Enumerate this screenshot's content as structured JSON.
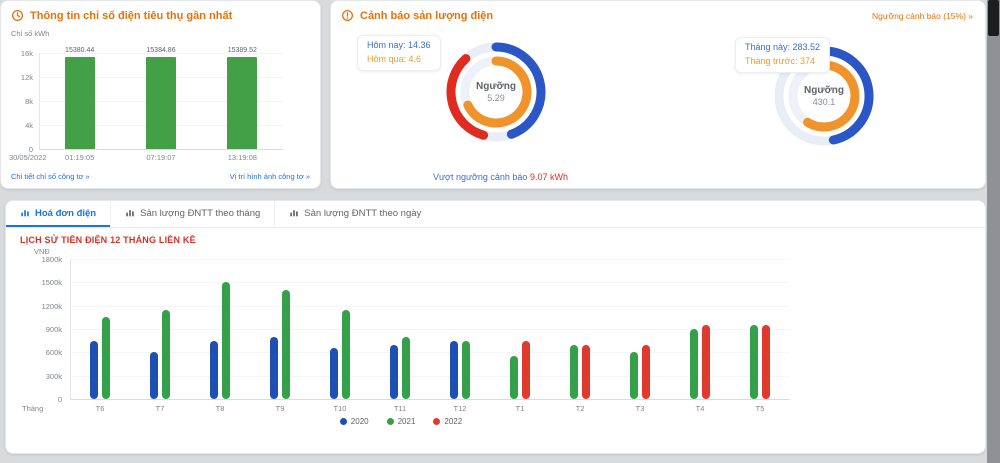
{
  "meter_card": {
    "title": "Thông tin chỉ số điện tiêu thụ gần nhất",
    "y_axis_caption": "Chỉ số kWh",
    "link_detail": "Chi tiết chỉ số công tơ »",
    "link_image": "Vị trí hình ảnh công tơ »"
  },
  "alert_card": {
    "title": "Cảnh báo sản lượng điện",
    "threshold_link": "Ngưỡng cảnh báo (15%) »"
  },
  "bills_card": {
    "tabs": [
      {
        "label": "Hoá đơn điện",
        "active": true
      },
      {
        "label": "Sản lượng ĐNTT theo tháng",
        "active": false
      },
      {
        "label": "Sản lượng ĐNTT theo ngày",
        "active": false
      }
    ],
    "title": "LỊCH SỬ TIỀN ĐIỆN 12 THÁNG LIỀN KỀ"
  },
  "colors": {
    "accent_orange": "#e8710a",
    "link_blue": "#1a73e8",
    "title_red": "#d93025",
    "bar_green": "#43a047",
    "gauge_blue": "#2a56c6",
    "gauge_orange": "#f0932b",
    "gauge_red": "#e02b20",
    "gauge_track": "#e9edf5"
  },
  "chart_data": [
    {
      "id": "meter-readings",
      "type": "bar",
      "title": "Thông tin chỉ số điện tiêu thụ gần nhất",
      "ylabel": "Chỉ số kWh",
      "ylim": [
        0,
        16000
      ],
      "yticks": [
        {
          "v": 16000,
          "label": "16k"
        },
        {
          "v": 12000,
          "label": "12k"
        },
        {
          "v": 8000,
          "label": "8k"
        },
        {
          "v": 4000,
          "label": "4k"
        },
        {
          "v": 0,
          "label": "0"
        }
      ],
      "date": "30/05/2022",
      "categories": [
        "01:19:05",
        "07:19:07",
        "13:19:08"
      ],
      "values": [
        15380.44,
        15384.86,
        15389.52
      ],
      "bar_color": "#43a047"
    },
    {
      "id": "gauge-today",
      "type": "gauge",
      "stats": [
        {
          "label": "Hôm nay: 14.36",
          "color": "#3b6fc9"
        },
        {
          "label": "Hôm qua: 4.6",
          "color": "#f29a2e"
        }
      ],
      "center_label": "Ngưỡng",
      "center_value": "5.29",
      "footer_text": "Vượt ngưỡng cảnh báo",
      "footer_value": "9.07 kWh",
      "rings": [
        {
          "r": 45,
          "w": 9,
          "track": "#e9edf5",
          "segments": [
            {
              "start": 0,
              "end": 160,
              "color": "#2a56c6"
            },
            {
              "start": 196,
              "end": 318,
              "color": "#e02b20"
            }
          ]
        },
        {
          "r": 31,
          "w": 9,
          "track": "#eef1f7",
          "segments": [
            {
              "start": 0,
              "end": 245,
              "color": "#f0932b"
            }
          ]
        }
      ]
    },
    {
      "id": "gauge-month",
      "type": "gauge",
      "stats": [
        {
          "label": "Tháng này: 283.52",
          "color": "#3b6fc9"
        },
        {
          "label": "Tháng trước: 374",
          "color": "#f29a2e"
        }
      ],
      "center_label": "Ngưỡng",
      "center_value": "430.1",
      "rings": [
        {
          "r": 45,
          "w": 9,
          "track": "#e9edf5",
          "segments": [
            {
              "start": 0,
              "end": 168,
              "color": "#2a56c6"
            }
          ]
        },
        {
          "r": 31,
          "w": 9,
          "track": "#eef1f7",
          "segments": [
            {
              "start": 0,
              "end": 212,
              "color": "#f0932b"
            }
          ]
        }
      ]
    },
    {
      "id": "billing-history",
      "type": "bar",
      "title": "LỊCH SỬ TIỀN ĐIỆN 12 THÁNG LIỀN KỀ",
      "ylabel": "VNĐ",
      "xlabel": "Tháng",
      "ylim": [
        0,
        1800
      ],
      "yticks": [
        {
          "v": 1800,
          "label": "1800k"
        },
        {
          "v": 1500,
          "label": "1500k"
        },
        {
          "v": 1200,
          "label": "1200k"
        },
        {
          "v": 900,
          "label": "900k"
        },
        {
          "v": 600,
          "label": "600k"
        },
        {
          "v": 300,
          "label": "300k"
        },
        {
          "v": 0,
          "label": "0"
        }
      ],
      "categories": [
        "T6",
        "T7",
        "T8",
        "T9",
        "T10",
        "T11",
        "T12",
        "T1",
        "T2",
        "T3",
        "T4",
        "T5"
      ],
      "series": [
        {
          "name": "2020",
          "color": "#1e50b4",
          "values": [
            750,
            600,
            750,
            800,
            650,
            700,
            750,
            null,
            null,
            null,
            null,
            null
          ]
        },
        {
          "name": "2021",
          "color": "#34a04a",
          "values": [
            1050,
            1150,
            1500,
            1400,
            1150,
            800,
            750,
            550,
            700,
            600,
            900,
            950
          ]
        },
        {
          "name": "2022",
          "color": "#e03a2f",
          "values": [
            null,
            null,
            null,
            null,
            null,
            null,
            null,
            750,
            700,
            700,
            950,
            950
          ]
        }
      ],
      "legend_position": "bottom"
    }
  ]
}
